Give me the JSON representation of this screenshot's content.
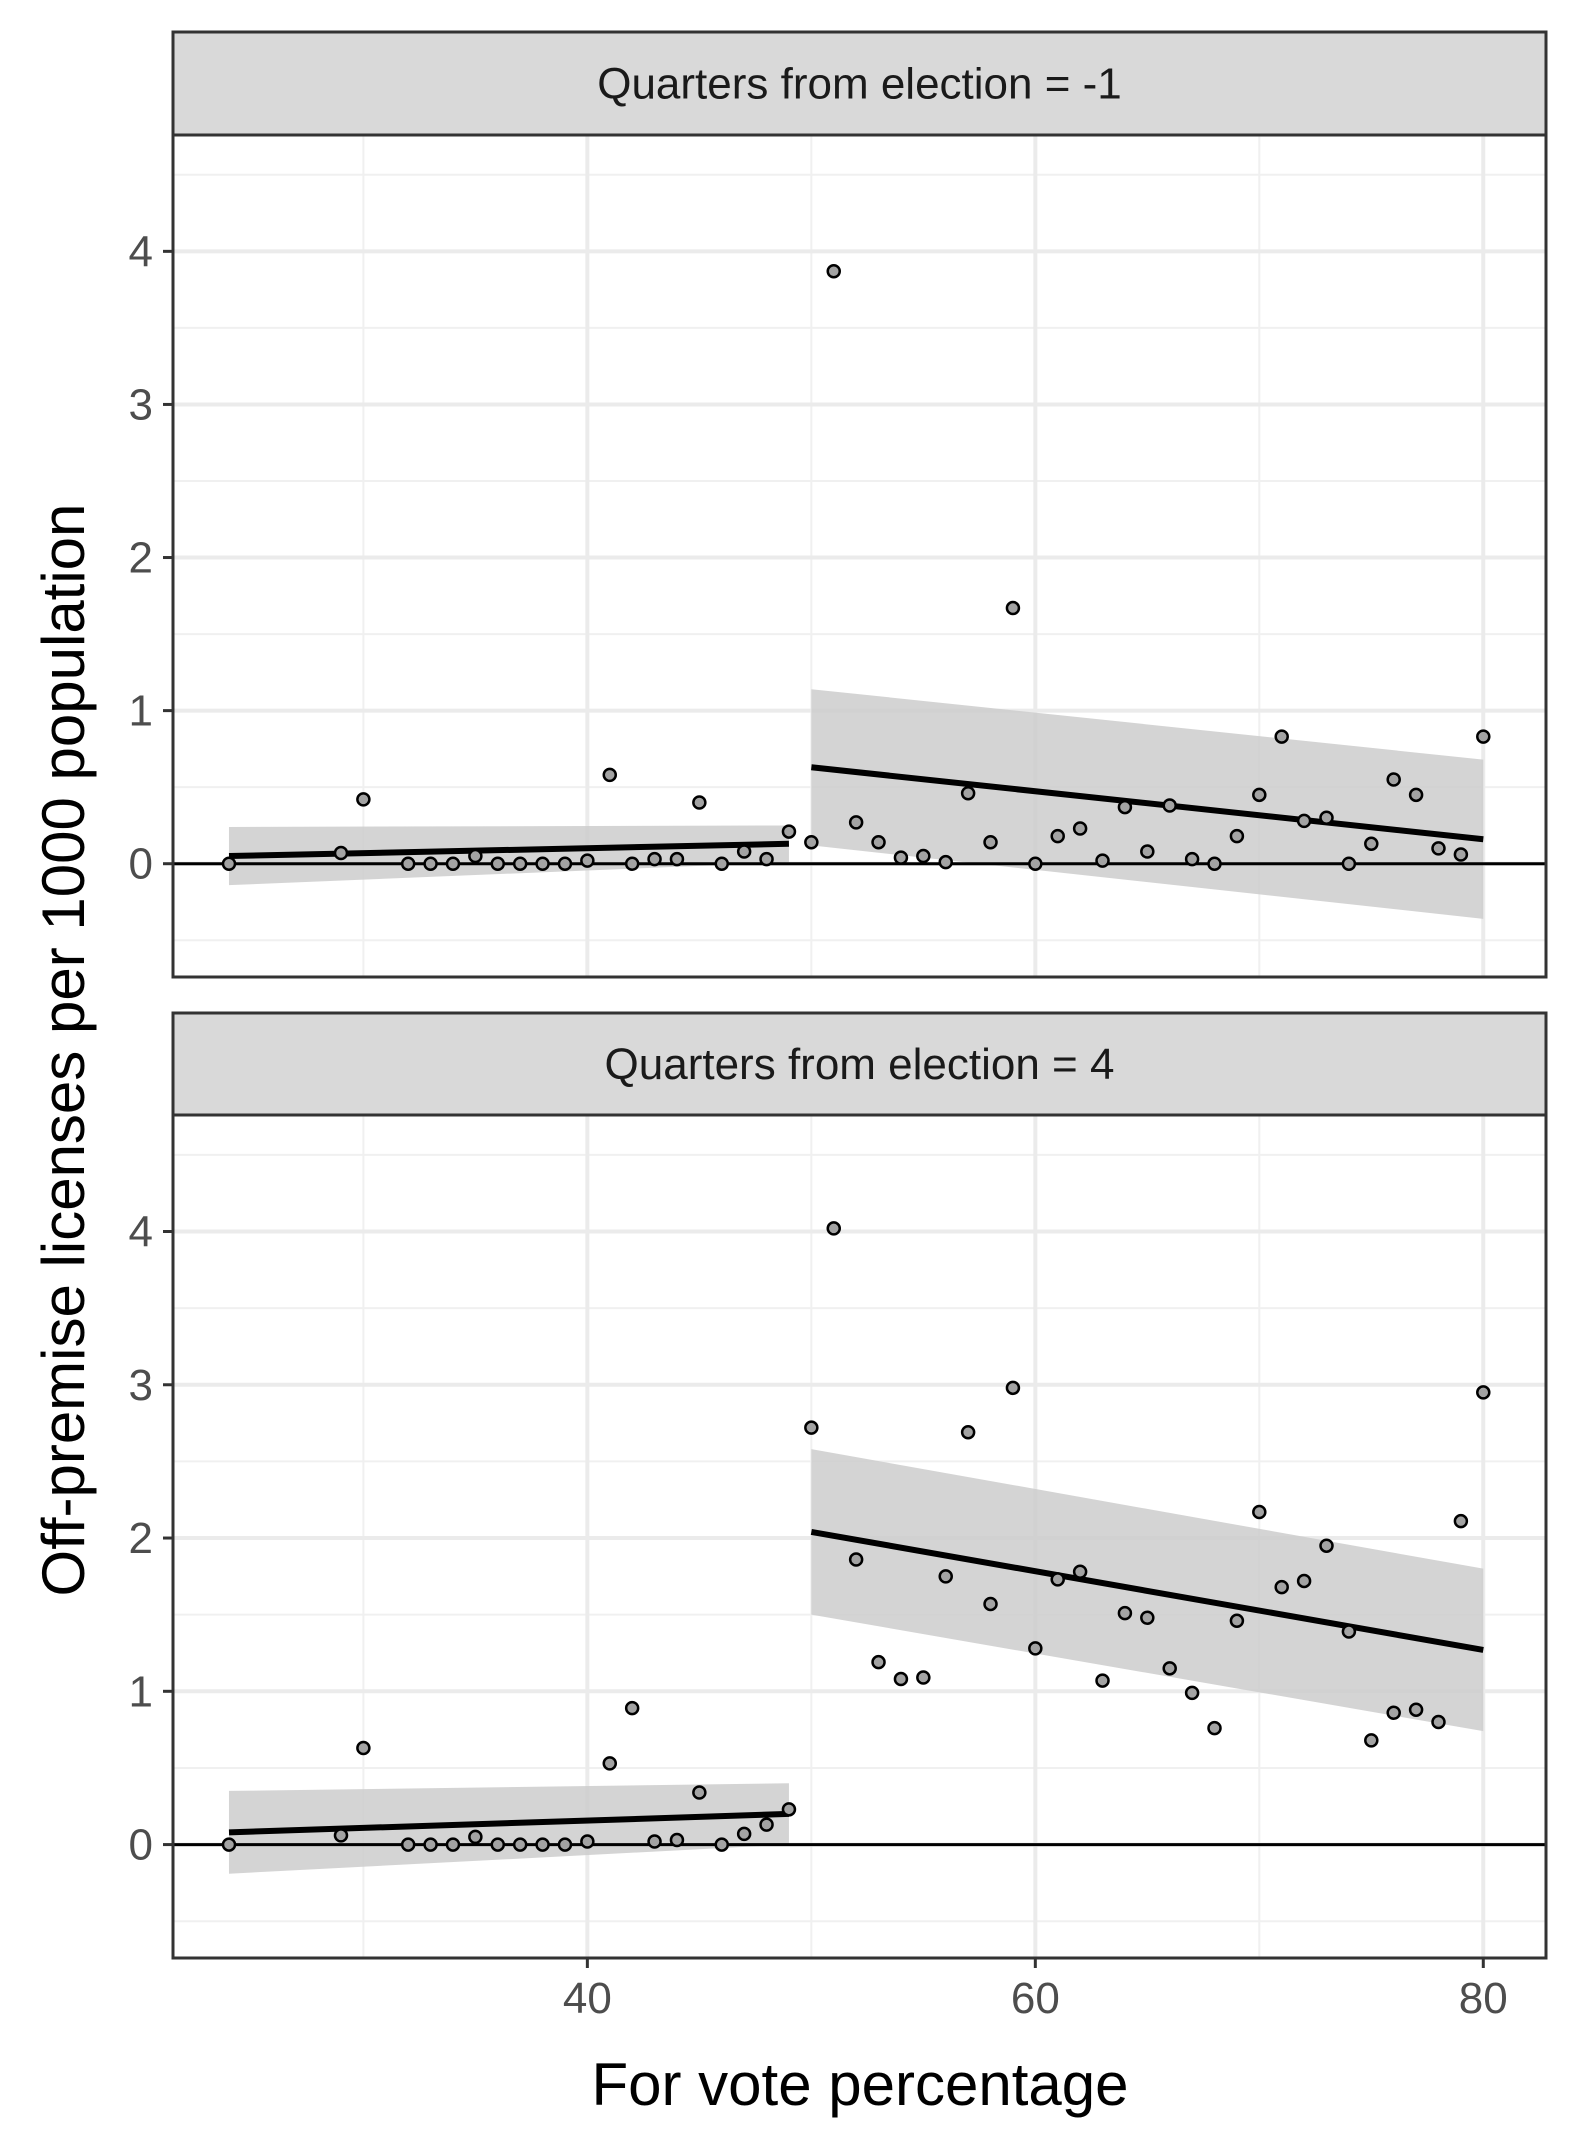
{
  "chart_data": {
    "type": "scatter",
    "xlabel": "For vote percentage",
    "ylabel": "Off-premise licenses per 1000 population",
    "xlim": [
      21.5,
      82.8
    ],
    "xticks": [
      40,
      60,
      80
    ],
    "yticks": [
      0,
      1,
      2,
      3,
      4
    ],
    "grid": true,
    "reference_line_y": 0,
    "panels": [
      {
        "strip_label": "Quarters from election = -1",
        "ylim": [
          -0.74,
          4.76
        ],
        "points": [
          [
            24,
            0.0
          ],
          [
            29,
            0.07
          ],
          [
            30,
            0.42
          ],
          [
            32,
            0.0
          ],
          [
            33,
            0.0
          ],
          [
            34,
            0.0
          ],
          [
            35,
            0.05
          ],
          [
            36,
            0.0
          ],
          [
            37,
            0.0
          ],
          [
            38,
            0.0
          ],
          [
            39,
            0.0
          ],
          [
            40,
            0.02
          ],
          [
            41,
            0.58
          ],
          [
            42,
            0.0
          ],
          [
            43,
            0.03
          ],
          [
            44,
            0.03
          ],
          [
            45,
            0.4
          ],
          [
            46,
            0.0
          ],
          [
            47,
            0.08
          ],
          [
            48,
            0.03
          ],
          [
            49,
            0.21
          ],
          [
            50,
            0.14
          ],
          [
            51,
            3.87
          ],
          [
            52,
            0.27
          ],
          [
            53,
            0.14
          ],
          [
            54,
            0.04
          ],
          [
            55,
            0.05
          ],
          [
            56,
            0.01
          ],
          [
            57,
            0.46
          ],
          [
            58,
            0.14
          ],
          [
            59,
            1.67
          ],
          [
            60,
            0.0
          ],
          [
            61,
            0.18
          ],
          [
            62,
            0.23
          ],
          [
            63,
            0.02
          ],
          [
            64,
            0.37
          ],
          [
            65,
            0.08
          ],
          [
            66,
            0.38
          ],
          [
            67,
            0.03
          ],
          [
            68,
            0.0
          ],
          [
            69,
            0.18
          ],
          [
            70,
            0.45
          ],
          [
            71,
            0.83
          ],
          [
            72,
            0.28
          ],
          [
            73,
            0.3
          ],
          [
            74,
            0.0
          ],
          [
            75,
            0.13
          ],
          [
            76,
            0.55
          ],
          [
            77,
            0.45
          ],
          [
            78,
            0.1
          ],
          [
            79,
            0.06
          ],
          [
            80,
            0.83
          ]
        ],
        "fits": [
          {
            "x": [
              24,
              49
            ],
            "y": [
              0.05,
              0.13
            ],
            "ci_lower": [
              -0.14,
              0.01
            ],
            "ci_upper": [
              0.24,
              0.25
            ]
          },
          {
            "x": [
              50,
              80
            ],
            "y": [
              0.63,
              0.16
            ],
            "ci_lower": [
              0.12,
              -0.36
            ],
            "ci_upper": [
              1.14,
              0.68
            ]
          }
        ]
      },
      {
        "strip_label": "Quarters from election = 4",
        "ylim": [
          -0.74,
          4.76
        ],
        "points": [
          [
            24,
            0.0
          ],
          [
            29,
            0.06
          ],
          [
            30,
            0.63
          ],
          [
            32,
            0.0
          ],
          [
            33,
            0.0
          ],
          [
            34,
            0.0
          ],
          [
            35,
            0.05
          ],
          [
            36,
            0.0
          ],
          [
            37,
            0.0
          ],
          [
            38,
            0.0
          ],
          [
            39,
            0.0
          ],
          [
            40,
            0.02
          ],
          [
            41,
            0.53
          ],
          [
            42,
            0.89
          ],
          [
            43,
            0.02
          ],
          [
            44,
            0.03
          ],
          [
            45,
            0.34
          ],
          [
            46,
            0.0
          ],
          [
            47,
            0.07
          ],
          [
            48,
            0.13
          ],
          [
            49,
            0.23
          ],
          [
            50,
            2.72
          ],
          [
            51,
            4.02
          ],
          [
            52,
            1.86
          ],
          [
            53,
            1.19
          ],
          [
            54,
            1.08
          ],
          [
            55,
            1.09
          ],
          [
            56,
            1.75
          ],
          [
            57,
            2.69
          ],
          [
            58,
            1.57
          ],
          [
            59,
            2.98
          ],
          [
            60,
            1.28
          ],
          [
            61,
            1.73
          ],
          [
            62,
            1.78
          ],
          [
            63,
            1.07
          ],
          [
            64,
            1.51
          ],
          [
            65,
            1.48
          ],
          [
            66,
            1.15
          ],
          [
            67,
            0.99
          ],
          [
            68,
            0.76
          ],
          [
            69,
            1.46
          ],
          [
            70,
            2.17
          ],
          [
            71,
            1.68
          ],
          [
            72,
            1.72
          ],
          [
            73,
            1.95
          ],
          [
            74,
            1.39
          ],
          [
            75,
            0.68
          ],
          [
            76,
            0.86
          ],
          [
            77,
            0.88
          ],
          [
            78,
            0.8
          ],
          [
            79,
            2.11
          ],
          [
            80,
            2.95
          ]
        ],
        "fits": [
          {
            "x": [
              24,
              49
            ],
            "y": [
              0.08,
              0.2
            ],
            "ci_lower": [
              -0.19,
              0.0
            ],
            "ci_upper": [
              0.35,
              0.4
            ]
          },
          {
            "x": [
              50,
              80
            ],
            "y": [
              2.04,
              1.27
            ],
            "ci_lower": [
              1.5,
              0.74
            ],
            "ci_upper": [
              2.58,
              1.8
            ]
          }
        ]
      }
    ]
  }
}
